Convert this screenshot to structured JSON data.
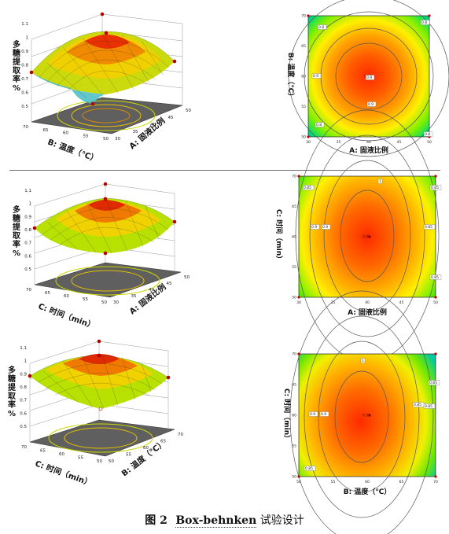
{
  "caption": {
    "label": "图 2",
    "name": "Box-behnken",
    "suffix": " 试验设计"
  },
  "chart_data": [
    {
      "type": "surface3d",
      "zlabel": "多糖提取率%",
      "z_ticks": [
        "0.5",
        "0.6",
        "0.7",
        "0.8",
        "0.9",
        "1",
        "1.1"
      ],
      "zlim": [
        0.5,
        1.1
      ],
      "xlabel": "A: 固液比例",
      "x_ticks": [
        "30",
        "35",
        "40",
        "45",
        "50"
      ],
      "ylabel": "B: 温度（℃）",
      "y_ticks": [
        "50",
        "55",
        "60",
        "65",
        "70"
      ],
      "peak": 1.0,
      "corner_values": [
        0.56,
        0.78,
        0.6,
        0.74
      ]
    },
    {
      "type": "contour",
      "xlabel": "A: 固液比例",
      "x_ticks": [
        "30",
        "35",
        "40",
        "45",
        "50"
      ],
      "ylabel": "B: 温度（℃）",
      "y_ticks": [
        "50",
        "55",
        "60",
        "65",
        "70"
      ],
      "center_label": "0.95",
      "labels": [
        "0.8",
        "0.8",
        "0.9",
        "0.8",
        "0.8",
        "0.9",
        "0.9"
      ]
    },
    {
      "type": "surface3d",
      "zlabel": "多糖提取率%",
      "z_ticks": [
        "0.5",
        "0.6",
        "0.7",
        "0.8",
        "0.9",
        "1",
        "1.1"
      ],
      "zlim": [
        0.5,
        1.1
      ],
      "xlabel": "A: 固液比例",
      "x_ticks": [
        "30",
        "35",
        "40",
        "45",
        "50"
      ],
      "ylabel": "C: 时间（min）",
      "y_ticks": [
        "50",
        "55",
        "60",
        "65",
        "70"
      ],
      "peak": 1.0,
      "corner_values": [
        0.75,
        0.84,
        0.8,
        0.83
      ]
    },
    {
      "type": "contour",
      "xlabel": "A: 固液比例",
      "x_ticks": [
        "30",
        "35",
        "40",
        "45",
        "50"
      ],
      "ylabel": "C: 时间（min）",
      "y_ticks": [
        "50",
        "55",
        "60",
        "65",
        "70"
      ],
      "center_label": "0.95",
      "labels": [
        "0.85",
        "0.9",
        "0.9",
        "0.85",
        "0.85",
        "0.85",
        "1"
      ]
    },
    {
      "type": "surface3d",
      "zlabel": "多糖提取率%",
      "z_ticks": [
        "0.5",
        "0.6",
        "0.7",
        "0.8",
        "0.9",
        "1",
        "1.1"
      ],
      "zlim": [
        0.5,
        1.1
      ],
      "xlabel": "B: 温度（℃）",
      "x_ticks": [
        "50",
        "55",
        "60",
        "65",
        "70"
      ],
      "ylabel": "C: 时间（min）",
      "y_ticks": [
        "50",
        "55",
        "60",
        "65",
        "70"
      ],
      "peak": 0.99,
      "corner_values": [
        0.87,
        0.83,
        0.6,
        0.84
      ]
    },
    {
      "type": "contour",
      "xlabel": "B: 温度（℃）",
      "x_ticks": [
        "50",
        "55",
        "60",
        "65",
        "70"
      ],
      "ylabel": "C: 时间（min）",
      "y_ticks": [
        "50",
        "55",
        "60",
        "65",
        "70"
      ],
      "center_label": "0.95",
      "labels": [
        "0.85",
        "0.9",
        "0.9",
        "0.85",
        "0.85",
        "0.85",
        "1"
      ]
    }
  ]
}
